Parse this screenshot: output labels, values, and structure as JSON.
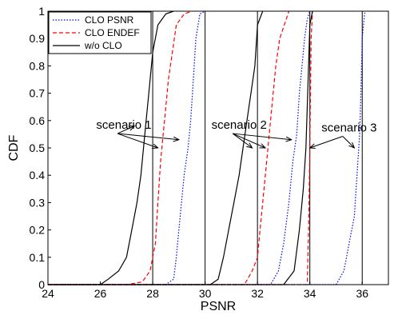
{
  "chart_data": {
    "type": "line",
    "title": "",
    "xlabel": "PSNR",
    "ylabel": "CDF",
    "xlim": [
      24,
      37
    ],
    "ylim": [
      0,
      1
    ],
    "xticks": [
      24,
      26,
      28,
      30,
      32,
      34,
      36
    ],
    "yticks": [
      0,
      0.1,
      0.2,
      0.3,
      0.4,
      0.5,
      0.6,
      0.7,
      0.8,
      0.9,
      1
    ],
    "xtick_labels": [
      "24",
      "26",
      "28",
      "30",
      "32",
      "34",
      "36"
    ],
    "ytick_labels": [
      "0",
      "0.1",
      "0.2",
      "0.3",
      "0.4",
      "0.5",
      "0.6",
      "0.7",
      "0.8",
      "0.9",
      "1"
    ],
    "grid": "vertical lines at 28, 30, 32, 34, 36",
    "legend_position": "top-left",
    "legend": [
      {
        "name": "CLO PSNR",
        "color": "#0000ff",
        "style": "dotted"
      },
      {
        "name": "CLO ENDEF",
        "color": "#ff0000",
        "style": "dashed"
      },
      {
        "name": "w/o CLO",
        "color": "#000000",
        "style": "solid"
      }
    ],
    "series": [
      {
        "name": "CLO PSNR",
        "scenario": "scenario 1",
        "color": "#0000ff",
        "style": "dotted",
        "x": [
          24,
          28.5,
          28.8,
          28.9,
          29.0,
          29.1,
          29.2,
          29.35,
          29.45,
          29.55,
          29.65,
          29.8,
          30.0
        ],
        "y": [
          0,
          0,
          0.02,
          0.1,
          0.2,
          0.3,
          0.4,
          0.5,
          0.6,
          0.75,
          0.9,
          0.99,
          1
        ]
      },
      {
        "name": "CLO ENDEF",
        "scenario": "scenario 1",
        "color": "#ff0000",
        "style": "dashed",
        "x": [
          24,
          27.0,
          27.6,
          27.9,
          28.1,
          28.2,
          28.3,
          28.4,
          28.5,
          28.6,
          28.75,
          28.9,
          29.2,
          29.5
        ],
        "y": [
          0,
          0,
          0.01,
          0.05,
          0.15,
          0.3,
          0.45,
          0.55,
          0.65,
          0.75,
          0.85,
          0.95,
          0.99,
          1
        ]
      },
      {
        "name": "w/o CLO",
        "scenario": "scenario 1",
        "color": "#000000",
        "style": "solid",
        "x": [
          24,
          26.0,
          26.3,
          26.7,
          27.0,
          27.2,
          27.4,
          27.55,
          27.7,
          27.85,
          28.0,
          28.2,
          28.5,
          28.8
        ],
        "y": [
          0,
          0,
          0.02,
          0.05,
          0.1,
          0.2,
          0.3,
          0.4,
          0.55,
          0.7,
          0.85,
          0.95,
          0.99,
          1
        ]
      },
      {
        "name": "CLO PSNR",
        "scenario": "scenario 2",
        "color": "#0000ff",
        "style": "dotted",
        "x": [
          24,
          32.5,
          32.8,
          33.0,
          33.2,
          33.35,
          33.5,
          33.6,
          33.7,
          33.8,
          33.9,
          34.0
        ],
        "y": [
          0,
          0,
          0.05,
          0.15,
          0.3,
          0.45,
          0.55,
          0.7,
          0.8,
          0.9,
          0.97,
          1
        ]
      },
      {
        "name": "CLO ENDEF",
        "scenario": "scenario 2",
        "color": "#ff0000",
        "style": "dashed",
        "x": [
          24,
          31.5,
          31.8,
          32.0,
          32.1,
          32.2,
          32.3,
          32.4,
          32.5,
          32.6,
          32.7,
          32.85,
          33.2
        ],
        "y": [
          0,
          0,
          0.05,
          0.1,
          0.2,
          0.3,
          0.4,
          0.5,
          0.6,
          0.7,
          0.8,
          0.9,
          1
        ]
      },
      {
        "name": "w/o CLO",
        "scenario": "scenario 2",
        "color": "#000000",
        "style": "solid",
        "x": [
          24,
          30.2,
          30.5,
          30.7,
          30.9,
          31.1,
          31.3,
          31.45,
          31.6,
          31.75,
          31.9,
          32.0,
          32.2
        ],
        "y": [
          0,
          0,
          0.02,
          0.1,
          0.2,
          0.3,
          0.4,
          0.5,
          0.6,
          0.7,
          0.8,
          0.95,
          1
        ]
      },
      {
        "name": "CLO PSNR",
        "scenario": "scenario 3",
        "color": "#0000ff",
        "style": "dotted",
        "x": [
          24,
          35.0,
          35.3,
          35.5,
          35.7,
          35.8,
          35.9,
          35.95,
          36.0,
          36.1
        ],
        "y": [
          0,
          0,
          0.05,
          0.15,
          0.25,
          0.4,
          0.55,
          0.7,
          0.9,
          1
        ]
      },
      {
        "name": "CLO ENDEF",
        "scenario": "scenario 3",
        "color": "#ff0000",
        "style": "dashed",
        "x": [
          24,
          33.9,
          33.95,
          34.0,
          34.05,
          34.1
        ],
        "y": [
          0,
          0,
          0.2,
          0.5,
          0.9,
          1
        ]
      },
      {
        "name": "w/o CLO",
        "scenario": "scenario 3",
        "color": "#000000",
        "style": "solid",
        "x": [
          24,
          33.0,
          33.4,
          33.6,
          33.75,
          33.85,
          33.95,
          34.0,
          34.1
        ],
        "y": [
          0,
          0,
          0.05,
          0.2,
          0.35,
          0.5,
          0.8,
          0.95,
          1
        ]
      }
    ],
    "annotations": [
      {
        "text": "scenario 1",
        "x": 26.9,
        "y": 0.57,
        "arrows": [
          {
            "x": 27.3,
            "y": 0.58
          },
          {
            "x": 28.2,
            "y": 0.5
          },
          {
            "x": 29.0,
            "y": 0.53
          }
        ]
      },
      {
        "text": "scenario 2",
        "x": 31.3,
        "y": 0.57,
        "arrows": [
          {
            "x": 31.8,
            "y": 0.5
          },
          {
            "x": 32.3,
            "y": 0.5
          },
          {
            "x": 33.3,
            "y": 0.53
          }
        ]
      },
      {
        "text": "scenario 3",
        "x": 35.5,
        "y": 0.56,
        "arrows": [
          {
            "x": 34.0,
            "y": 0.5
          },
          {
            "x": 35.7,
            "y": 0.5
          }
        ]
      }
    ]
  }
}
